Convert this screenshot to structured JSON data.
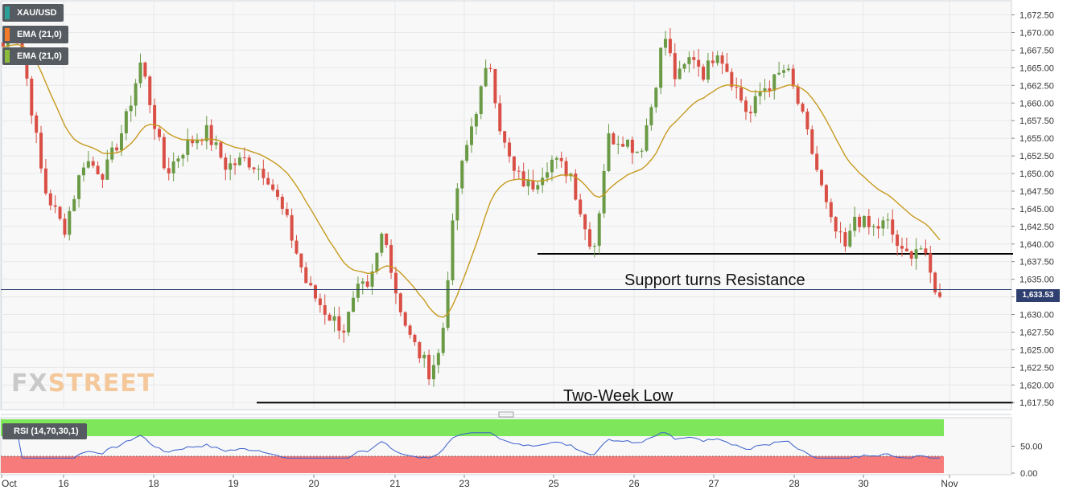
{
  "header": {
    "symbol": "XAU/USD",
    "indicators": [
      "EMA (21,0)",
      "EMA (21,0)"
    ],
    "indicator_colors": [
      "#f47a27",
      "#8dbb3a"
    ]
  },
  "price_tag": "1,633.53",
  "annotations": {
    "resistance": "Support turns Resistance",
    "low": "Two-Week Low"
  },
  "logo": {
    "part1": "FX",
    "part2": "STREET"
  },
  "rsi": {
    "label": "RSI (14,70,30,1)"
  },
  "colors": {
    "up": "#6a9a45",
    "down": "#d94f45",
    "ema": "#c79a1e",
    "rsi_line": "#3a5fcd",
    "rsi_over": "#7ee65a",
    "rsi_under": "#f77b7b",
    "price_line": "#2f3f6f"
  },
  "chart_data": {
    "type": "line",
    "title": "XAU/USD",
    "x_ticks": [
      "Oct",
      "16",
      "18",
      "19",
      "20",
      "21",
      "23",
      "25",
      "26",
      "27",
      "28",
      "30",
      "Nov"
    ],
    "y_ticks": [
      "1,617.50",
      "1,620.00",
      "1,622.50",
      "1,625.00",
      "1,627.50",
      "1,630.00",
      "1,632.50",
      "1,635.00",
      "1,637.50",
      "1,640.00",
      "1,642.50",
      "1,645.00",
      "1,647.50",
      "1,650.00",
      "1,652.50",
      "1,655.00",
      "1,657.50",
      "1,660.00",
      "1,662.50",
      "1,665.00",
      "1,667.50",
      "1,670.00",
      "1,672.50"
    ],
    "ylim": [
      1616.5,
      1674.5
    ],
    "last_price": 1633.53,
    "levels": [
      {
        "name": "Support turns Resistance",
        "value": 1638.6
      },
      {
        "name": "Two-Week Low",
        "value": 1617.5
      }
    ],
    "price_anchors": [
      [
        0,
        1668
      ],
      [
        0.3,
        1671
      ],
      [
        0.6,
        1663
      ],
      [
        1,
        1648
      ],
      [
        1.5,
        1642
      ],
      [
        2,
        1652
      ],
      [
        2.5,
        1650
      ],
      [
        3,
        1657
      ],
      [
        3.4,
        1666
      ],
      [
        4,
        1650
      ],
      [
        4.5,
        1654
      ],
      [
        5,
        1656
      ],
      [
        5.5,
        1651
      ],
      [
        6,
        1652
      ],
      [
        6.5,
        1650
      ],
      [
        7,
        1643
      ],
      [
        7.5,
        1634
      ],
      [
        8,
        1630
      ],
      [
        8.4,
        1628
      ],
      [
        8.8,
        1634
      ],
      [
        9,
        1633
      ],
      [
        9.4,
        1643
      ],
      [
        9.6,
        1635
      ],
      [
        10,
        1627
      ],
      [
        10.5,
        1622
      ],
      [
        10.8,
        1625
      ],
      [
        11,
        1638
      ],
      [
        11.2,
        1648
      ],
      [
        11.6,
        1658
      ],
      [
        12,
        1666
      ],
      [
        12.3,
        1655
      ],
      [
        12.6,
        1650
      ],
      [
        13,
        1648
      ],
      [
        13.5,
        1652
      ],
      [
        14,
        1650
      ],
      [
        14.4,
        1641
      ],
      [
        14.6,
        1640
      ],
      [
        14.9,
        1655
      ],
      [
        15.3,
        1655
      ],
      [
        15.7,
        1653
      ],
      [
        16,
        1660
      ],
      [
        16.3,
        1670
      ],
      [
        16.6,
        1663
      ],
      [
        17,
        1667
      ],
      [
        17.3,
        1664
      ],
      [
        17.6,
        1668
      ],
      [
        18,
        1663
      ],
      [
        18.4,
        1658
      ],
      [
        18.7,
        1662
      ],
      [
        19,
        1663
      ],
      [
        19.3,
        1665
      ],
      [
        19.6,
        1660
      ],
      [
        20,
        1652
      ],
      [
        20.4,
        1643
      ],
      [
        20.8,
        1639
      ],
      [
        21,
        1644
      ],
      [
        21.4,
        1642
      ],
      [
        21.8,
        1643
      ],
      [
        22.2,
        1638
      ],
      [
        22.6,
        1640
      ],
      [
        22.9,
        1635
      ],
      [
        23.1,
        1632.5
      ]
    ],
    "ema_period": 21,
    "rsi": {
      "levels": [
        30,
        70
      ],
      "y_ticks": [
        "50.00",
        "0.00"
      ],
      "ylim": [
        0,
        100
      ]
    }
  }
}
